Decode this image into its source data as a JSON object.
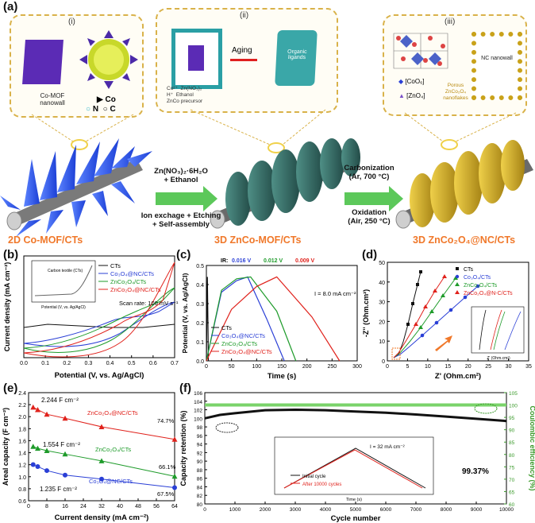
{
  "panel_labels": {
    "a": "(a)",
    "b": "(b)",
    "c": "(c)",
    "d": "(d)",
    "e": "(e)",
    "f": "(f)"
  },
  "schematic": {
    "roman": [
      "(i)",
      "(ii)",
      "(iii)"
    ],
    "mof_label": "Co-MOF nanowall",
    "legend_i": [
      "Co",
      "N",
      "C"
    ],
    "aging": "Aging",
    "organic": "Organic ligands",
    "legend_ii": [
      "Co²⁺",
      "Zn(NO₃)₂",
      "H⁺",
      "Ethanol",
      "ZnCo precursor"
    ],
    "cluster_labels": [
      "[CoO₆]",
      "[ZnO₄]"
    ],
    "nc_label": "NC nanowall",
    "porous_label": "Porous ZnCo₂O₄ nanoflakes",
    "arrow1_top": [
      "Zn(NO₃)₂·6H₂O",
      "+ Ethanol"
    ],
    "arrow1_bottom": [
      "Ion exchage + Etching",
      "+ Self-assembly"
    ],
    "arrow2_top": [
      "Carbonization",
      "(Ar, 700 °C)"
    ],
    "arrow2_bottom": [
      "Oxidation",
      "(Air, 250 °C)"
    ],
    "captions": [
      "2D Co-MOF/CTs",
      "3D ZnCo-MOF/CTs",
      "3D ZnCo₂O₄@NC/CTs"
    ]
  },
  "colors": {
    "ct": "#111111",
    "co3o4": "#2a3fd6",
    "znco": "#1e9b2a",
    "zncoNC": "#e0221c",
    "accent": "#f0782a",
    "green_axis": "#3a9a2a"
  },
  "chart_data": [
    {
      "id": "b",
      "type": "line",
      "xlabel": "Potential (V, vs. Ag/AgCl)",
      "ylabel": "Current density (mA cm⁻²)",
      "xlim": [
        0.0,
        0.7
      ],
      "xticks": [
        "0.0",
        "0.1",
        "0.2",
        "0.3",
        "0.4",
        "0.5",
        "0.6",
        "0.7"
      ],
      "legend": [
        "CTs",
        "Co₃O₄@NC/CTs",
        "ZnCo₂O₄/CTs",
        "ZnCo₂O₄@NC/CTs"
      ],
      "annotation": "Scan rate: 100 mV s⁻¹",
      "inset": {
        "label": "Carbon textile (CTs)",
        "ylabel": "Current density (mA cm⁻²)",
        "xlabel": "Potential (V, vs. Ag/AgCl)",
        "xticks": [
          "0.0",
          "0.1",
          "0.2",
          "0.3",
          "0.4",
          "0.5",
          "0.6",
          "0.7"
        ]
      }
    },
    {
      "id": "c",
      "type": "line",
      "xlabel": "Time (s)",
      "ylabel": "Potential (V, vs. Ag/AgCl)",
      "xlim": [
        0,
        300
      ],
      "ylim": [
        0.0,
        0.5
      ],
      "xticks": [
        "0",
        "50",
        "100",
        "150",
        "200",
        "250",
        "300"
      ],
      "yticks": [
        "0.0",
        "0.1",
        "0.2",
        "0.3",
        "0.4",
        "0.5"
      ],
      "legend": [
        "CTs",
        "Co₃O₄@NC/CTs",
        "ZnCo₂O₄/CTs",
        "ZnCo₂O₄@NC/CTs"
      ],
      "annotation": "I = 8.0 mA cm⁻²",
      "ir_label": "IR:",
      "ir_drops": [
        "0.016 V",
        "0.012 V",
        "0.009 V"
      ],
      "series": [
        {
          "name": "CTs",
          "x": [
            0,
            2,
            4
          ],
          "y": [
            0.0,
            0.44,
            0.0
          ]
        },
        {
          "name": "Co₃O₄@NC/CTs",
          "x": [
            0,
            30,
            60,
            82,
            120,
            155
          ],
          "y": [
            0.0,
            0.36,
            0.42,
            0.44,
            0.22,
            0.0
          ]
        },
        {
          "name": "ZnCo₂O₄/CTs",
          "x": [
            0,
            30,
            60,
            88,
            140,
            178
          ],
          "y": [
            0.0,
            0.37,
            0.43,
            0.44,
            0.26,
            0.0
          ]
        },
        {
          "name": "ZnCo₂O₄@NC/CTs",
          "x": [
            0,
            50,
            100,
            140,
            210,
            265
          ],
          "y": [
            0.0,
            0.27,
            0.39,
            0.44,
            0.23,
            0.0
          ]
        }
      ]
    },
    {
      "id": "d",
      "type": "scatter",
      "xlabel": "Z' (Ohm.cm²)",
      "ylabel": "-Z'' (Ohm.cm²)",
      "xlim": [
        0,
        35
      ],
      "ylim": [
        0,
        50
      ],
      "xticks": [
        "0",
        "5",
        "10",
        "15",
        "20",
        "25",
        "30",
        "35"
      ],
      "yticks": [
        "0",
        "10",
        "20",
        "30",
        "40",
        "50"
      ],
      "legend": [
        "CTs",
        "Co₃O₄/CTs",
        "ZnCo₂O₄/CTs",
        "ZnCo₂O₄@N-C/CTs"
      ],
      "inset": {
        "xlabel": "Z' (Ohm.cm²)",
        "ylabel": "-Z'' (Ohm.cm²)",
        "xticks": [
          "2.0",
          "2.2",
          "2.4",
          "2.6"
        ],
        "yticks": [
          "0.0",
          "0.1",
          "0.2",
          "0.3",
          "0.4"
        ]
      }
    },
    {
      "id": "e",
      "type": "line",
      "xlabel": "Current density (mA cm⁻²)",
      "ylabel": "Areal capacity (F cm⁻²)",
      "xlim": [
        0,
        64
      ],
      "ylim": [
        0.6,
        2.5
      ],
      "xticks": [
        "0",
        "8",
        "16",
        "24",
        "32",
        "40",
        "48",
        "56",
        "64"
      ],
      "yticks": [
        "0.6",
        "0.8",
        "1.0",
        "1.2",
        "1.4",
        "1.6",
        "1.8",
        "2.0",
        "2.2",
        "2.4"
      ],
      "series": [
        {
          "name": "ZnCo₂O₄@NC/CTs",
          "x": [
            2,
            4,
            8,
            16,
            32,
            64
          ],
          "y": [
            2.244,
            2.2,
            2.12,
            2.05,
            1.9,
            1.68
          ],
          "retention": "74.7%",
          "top": "2.244 F cm⁻²"
        },
        {
          "name": "ZnCo₂O₄/CTs",
          "x": [
            2,
            4,
            8,
            16,
            32,
            64
          ],
          "y": [
            1.554,
            1.52,
            1.48,
            1.42,
            1.3,
            1.03
          ],
          "retention": "66.1%",
          "top": "1.554 F cm⁻²"
        },
        {
          "name": "Co₃O₄@NC/CTs",
          "x": [
            2,
            4,
            8,
            16,
            32,
            64
          ],
          "y": [
            1.235,
            1.2,
            1.13,
            1.05,
            0.98,
            0.83
          ],
          "retention": "67.5%",
          "top": "1.235 F cm⁻²"
        }
      ]
    },
    {
      "id": "f",
      "type": "line",
      "xlabel": "Cycle number",
      "ylabel": "Capacity retention (%)",
      "ylabel2": "Coulombic efficiency (%)",
      "xlim": [
        0,
        10000
      ],
      "ylim": [
        80,
        106
      ],
      "ylim2": [
        60,
        105
      ],
      "xticks": [
        "0",
        "1000",
        "2000",
        "3000",
        "4000",
        "5000",
        "6000",
        "7000",
        "8000",
        "9000",
        "10000"
      ],
      "yticks": [
        "80",
        "82",
        "84",
        "86",
        "88",
        "90",
        "92",
        "94",
        "96",
        "98",
        "100",
        "102",
        "104",
        "106"
      ],
      "yticks2": [
        "60",
        "65",
        "70",
        "75",
        "80",
        "85",
        "90",
        "95",
        "100",
        "105"
      ],
      "final": "99.37%",
      "retention": {
        "x": [
          0,
          500,
          1000,
          2000,
          3000,
          4000,
          5000,
          6000,
          7000,
          8000,
          9000,
          10000
        ],
        "y": [
          100,
          100.8,
          101.2,
          101.9,
          102,
          101.9,
          101.6,
          101.3,
          100.9,
          100.4,
          99.9,
          99.37
        ]
      },
      "efficiency": {
        "x": [
          0,
          10000
        ],
        "y": [
          100,
          100
        ]
      },
      "inset": {
        "title": "I = 32 mA cm⁻²",
        "xlabel": "Time (s)",
        "ylabel": "Potential (V, vs. Ag/AgCl)",
        "legend": [
          "Initial cycle",
          "After 10000 cycles"
        ],
        "xticks": [
          "0",
          "10",
          "20",
          "30",
          "40",
          "50",
          "60"
        ],
        "yticks": [
          "0.0",
          "0.1",
          "0.2",
          "0.3",
          "0.4",
          "0.5"
        ]
      }
    }
  ]
}
